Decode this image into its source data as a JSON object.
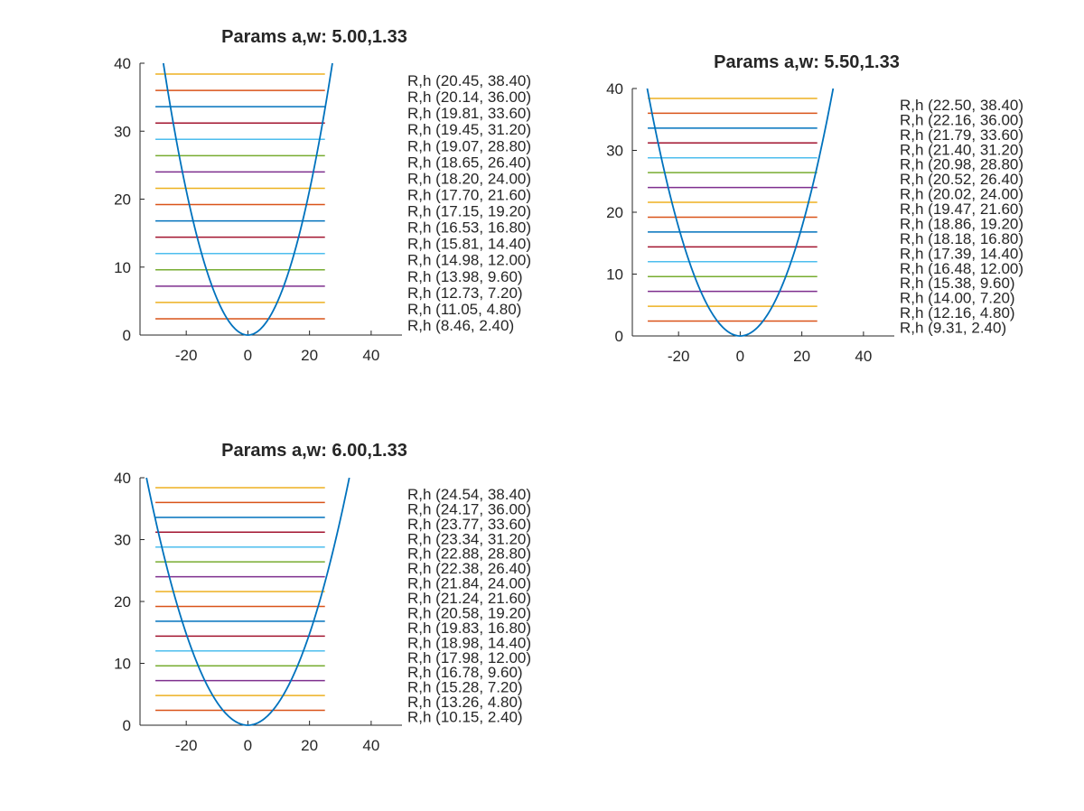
{
  "chart_data": [
    {
      "type": "line",
      "title": "Params a,w: 5.00,1.33",
      "params": {
        "a": 5.0,
        "w": 1.33
      },
      "xlabel": "",
      "ylabel": "",
      "xlim": [
        -35,
        50
      ],
      "ylim": [
        0,
        40
      ],
      "xticks": [
        -20,
        0,
        20,
        40
      ],
      "yticks": [
        0,
        10,
        20,
        30,
        40
      ],
      "line_x_range": [
        -30,
        25
      ],
      "levels": [
        {
          "h": 38.4,
          "R": 20.45,
          "label": "R,h (20.45, 38.40)",
          "color": "#EDB120"
        },
        {
          "h": 36.0,
          "R": 20.14,
          "label": "R,h (20.14, 36.00)",
          "color": "#D95319"
        },
        {
          "h": 33.6,
          "R": 19.81,
          "label": "R,h (19.81, 33.60)",
          "color": "#0072BD"
        },
        {
          "h": 31.2,
          "R": 19.45,
          "label": "R,h (19.45, 31.20)",
          "color": "#A2142F"
        },
        {
          "h": 28.8,
          "R": 19.07,
          "label": "R,h (19.07, 28.80)",
          "color": "#4DBEEE"
        },
        {
          "h": 26.4,
          "R": 18.65,
          "label": "R,h (18.65, 26.40)",
          "color": "#77AC30"
        },
        {
          "h": 24.0,
          "R": 18.2,
          "label": "R,h (18.20, 24.00)",
          "color": "#7E2F8E"
        },
        {
          "h": 21.6,
          "R": 17.7,
          "label": "R,h (17.70, 21.60)",
          "color": "#EDB120"
        },
        {
          "h": 19.2,
          "R": 17.15,
          "label": "R,h (17.15, 19.20)",
          "color": "#D95319"
        },
        {
          "h": 16.8,
          "R": 16.53,
          "label": "R,h (16.53, 16.80)",
          "color": "#0072BD"
        },
        {
          "h": 14.4,
          "R": 15.81,
          "label": "R,h (15.81, 14.40)",
          "color": "#A2142F"
        },
        {
          "h": 12.0,
          "R": 14.98,
          "label": "R,h (14.98, 12.00)",
          "color": "#4DBEEE"
        },
        {
          "h": 9.6,
          "R": 13.98,
          "label": "R,h (13.98, 9.60)",
          "color": "#77AC30"
        },
        {
          "h": 7.2,
          "R": 12.73,
          "label": "R,h (12.73, 7.20)",
          "color": "#7E2F8E"
        },
        {
          "h": 4.8,
          "R": 11.05,
          "label": "R,h (11.05, 4.80)",
          "color": "#EDB120"
        },
        {
          "h": 2.4,
          "R": 8.46,
          "label": "R,h (8.46, 2.40)",
          "color": "#D95319"
        }
      ],
      "curve_color": "#0072BD"
    },
    {
      "type": "line",
      "title": "Params a,w: 5.50,1.33",
      "params": {
        "a": 5.5,
        "w": 1.33
      },
      "xlabel": "",
      "ylabel": "",
      "xlim": [
        -35,
        50
      ],
      "ylim": [
        0,
        40
      ],
      "xticks": [
        -20,
        0,
        20,
        40
      ],
      "yticks": [
        0,
        10,
        20,
        30,
        40
      ],
      "line_x_range": [
        -30,
        25
      ],
      "levels": [
        {
          "h": 38.4,
          "R": 22.5,
          "label": "R,h (22.50, 38.40)",
          "color": "#EDB120"
        },
        {
          "h": 36.0,
          "R": 22.16,
          "label": "R,h (22.16, 36.00)",
          "color": "#D95319"
        },
        {
          "h": 33.6,
          "R": 21.79,
          "label": "R,h (21.79, 33.60)",
          "color": "#0072BD"
        },
        {
          "h": 31.2,
          "R": 21.4,
          "label": "R,h (21.40, 31.20)",
          "color": "#A2142F"
        },
        {
          "h": 28.8,
          "R": 20.98,
          "label": "R,h (20.98, 28.80)",
          "color": "#4DBEEE"
        },
        {
          "h": 26.4,
          "R": 20.52,
          "label": "R,h (20.52, 26.40)",
          "color": "#77AC30"
        },
        {
          "h": 24.0,
          "R": 20.02,
          "label": "R,h (20.02, 24.00)",
          "color": "#7E2F8E"
        },
        {
          "h": 21.6,
          "R": 19.47,
          "label": "R,h (19.47, 21.60)",
          "color": "#EDB120"
        },
        {
          "h": 19.2,
          "R": 18.86,
          "label": "R,h (18.86, 19.20)",
          "color": "#D95319"
        },
        {
          "h": 16.8,
          "R": 18.18,
          "label": "R,h (18.18, 16.80)",
          "color": "#0072BD"
        },
        {
          "h": 14.4,
          "R": 17.39,
          "label": "R,h (17.39, 14.40)",
          "color": "#A2142F"
        },
        {
          "h": 12.0,
          "R": 16.48,
          "label": "R,h (16.48, 12.00)",
          "color": "#4DBEEE"
        },
        {
          "h": 9.6,
          "R": 15.38,
          "label": "R,h (15.38, 9.60)",
          "color": "#77AC30"
        },
        {
          "h": 7.2,
          "R": 14.0,
          "label": "R,h (14.00, 7.20)",
          "color": "#7E2F8E"
        },
        {
          "h": 4.8,
          "R": 12.16,
          "label": "R,h (12.16, 4.80)",
          "color": "#EDB120"
        },
        {
          "h": 2.4,
          "R": 9.31,
          "label": "R,h (9.31, 2.40)",
          "color": "#D95319"
        }
      ],
      "curve_color": "#0072BD"
    },
    {
      "type": "line",
      "title": "Params a,w: 6.00,1.33",
      "params": {
        "a": 6.0,
        "w": 1.33
      },
      "xlabel": "",
      "ylabel": "",
      "xlim": [
        -35,
        50
      ],
      "ylim": [
        0,
        40
      ],
      "xticks": [
        -20,
        0,
        20,
        40
      ],
      "yticks": [
        0,
        10,
        20,
        30,
        40
      ],
      "line_x_range": [
        -30,
        25
      ],
      "levels": [
        {
          "h": 38.4,
          "R": 24.54,
          "label": "R,h (24.54, 38.40)",
          "color": "#EDB120"
        },
        {
          "h": 36.0,
          "R": 24.17,
          "label": "R,h (24.17, 36.00)",
          "color": "#D95319"
        },
        {
          "h": 33.6,
          "R": 23.77,
          "label": "R,h (23.77, 33.60)",
          "color": "#0072BD"
        },
        {
          "h": 31.2,
          "R": 23.34,
          "label": "R,h (23.34, 31.20)",
          "color": "#A2142F"
        },
        {
          "h": 28.8,
          "R": 22.88,
          "label": "R,h (22.88, 28.80)",
          "color": "#4DBEEE"
        },
        {
          "h": 26.4,
          "R": 22.38,
          "label": "R,h (22.38, 26.40)",
          "color": "#77AC30"
        },
        {
          "h": 24.0,
          "R": 21.84,
          "label": "R,h (21.84, 24.00)",
          "color": "#7E2F8E"
        },
        {
          "h": 21.6,
          "R": 21.24,
          "label": "R,h (21.24, 21.60)",
          "color": "#EDB120"
        },
        {
          "h": 19.2,
          "R": 20.58,
          "label": "R,h (20.58, 19.20)",
          "color": "#D95319"
        },
        {
          "h": 16.8,
          "R": 19.83,
          "label": "R,h (19.83, 16.80)",
          "color": "#0072BD"
        },
        {
          "h": 14.4,
          "R": 18.98,
          "label": "R,h (18.98, 14.40)",
          "color": "#A2142F"
        },
        {
          "h": 12.0,
          "R": 17.98,
          "label": "R,h (17.98, 12.00)",
          "color": "#4DBEEE"
        },
        {
          "h": 9.6,
          "R": 16.78,
          "label": "R,h (16.78, 9.60)",
          "color": "#77AC30"
        },
        {
          "h": 7.2,
          "R": 15.28,
          "label": "R,h (15.28, 7.20)",
          "color": "#7E2F8E"
        },
        {
          "h": 4.8,
          "R": 13.26,
          "label": "R,h (13.26, 4.80)",
          "color": "#EDB120"
        },
        {
          "h": 2.4,
          "R": 10.15,
          "label": "R,h (10.15, 2.40)",
          "color": "#D95319"
        }
      ],
      "curve_color": "#0072BD"
    }
  ]
}
